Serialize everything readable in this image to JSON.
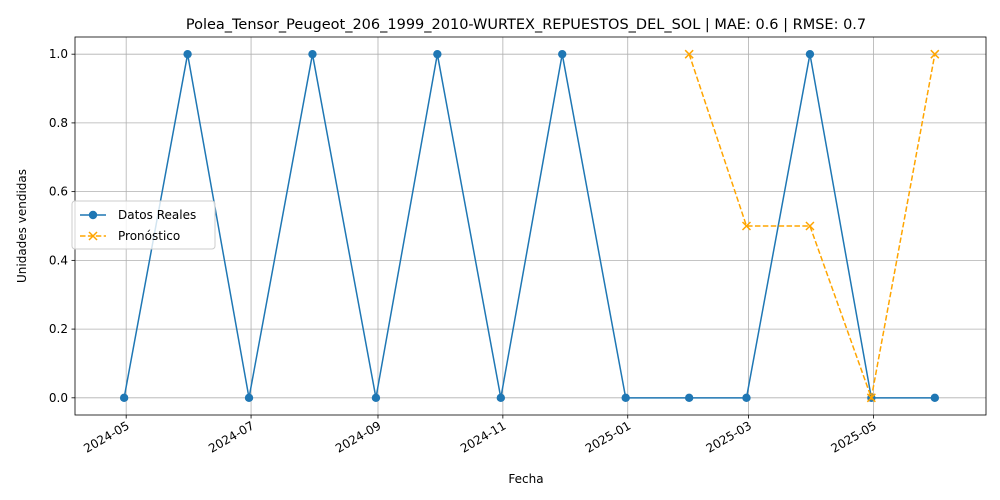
{
  "chart_data": {
    "type": "line",
    "title": "Polea_Tensor_Peugeot_206_1999_2010-WURTEX_REPUESTOS_DEL_SOL | MAE: 0.6 | RMSE: 0.7",
    "xlabel": "Fecha",
    "ylabel": "Unidades vendidas",
    "xlim": [
      "2024-04-06",
      "2025-06-25"
    ],
    "ylim": [
      -0.05,
      1.05
    ],
    "x_ticks": [
      "2024-05",
      "2024-07",
      "2024-09",
      "2024-11",
      "2025-01",
      "2025-03",
      "2025-05"
    ],
    "y_ticks": [
      "0.0",
      "0.2",
      "0.4",
      "0.6",
      "0.8",
      "1.0"
    ],
    "grid": true,
    "legend_position": "center-left",
    "series": [
      {
        "name": "Datos Reales",
        "color": "#1f77b4",
        "style": "solid",
        "marker": "circle",
        "x": [
          "2024-04-30",
          "2024-05-31",
          "2024-06-30",
          "2024-07-31",
          "2024-08-31",
          "2024-09-30",
          "2024-10-31",
          "2024-11-30",
          "2024-12-31",
          "2025-01-31",
          "2025-02-28",
          "2025-03-31",
          "2025-04-30",
          "2025-05-31"
        ],
        "values": [
          0,
          1,
          0,
          1,
          0,
          1,
          0,
          1,
          0,
          0,
          0,
          1,
          0,
          0
        ]
      },
      {
        "name": "Pronóstico",
        "color": "#ffa500",
        "style": "dashed",
        "marker": "x",
        "x": [
          "2025-01-31",
          "2025-02-28",
          "2025-03-31",
          "2025-04-30",
          "2025-05-31"
        ],
        "values": [
          1,
          0.5,
          0.5,
          0,
          1
        ]
      }
    ]
  }
}
